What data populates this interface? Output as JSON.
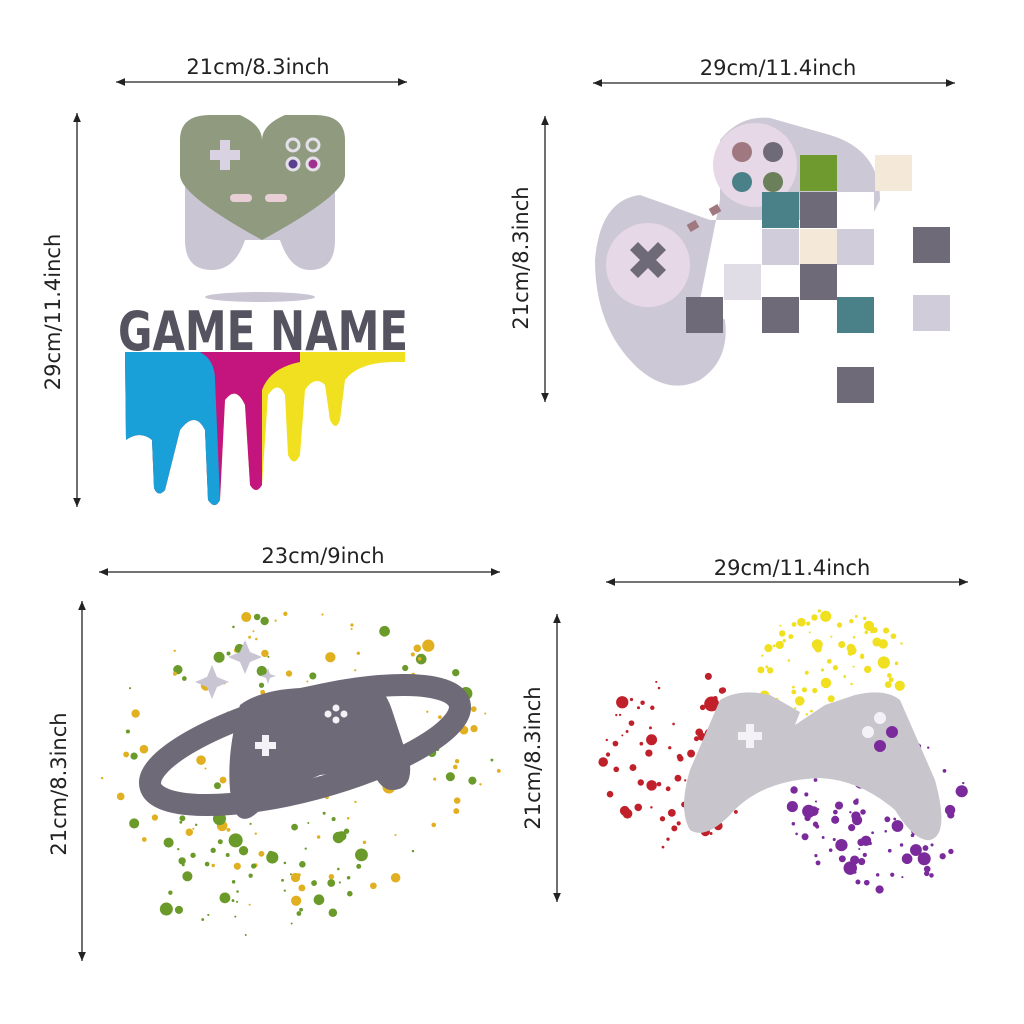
{
  "panels": [
    {
      "width_label": "21cm/8.3inch",
      "height_label": "29cm/11.4inch",
      "text": "GAME NAME"
    },
    {
      "width_label": "29cm/11.4inch",
      "height_label": "21cm/8.3inch"
    },
    {
      "width_label": "23cm/9inch",
      "height_label": "21cm/8.3inch"
    },
    {
      "width_label": "29cm/11.4inch",
      "height_label": "21cm/8.3inch"
    }
  ]
}
